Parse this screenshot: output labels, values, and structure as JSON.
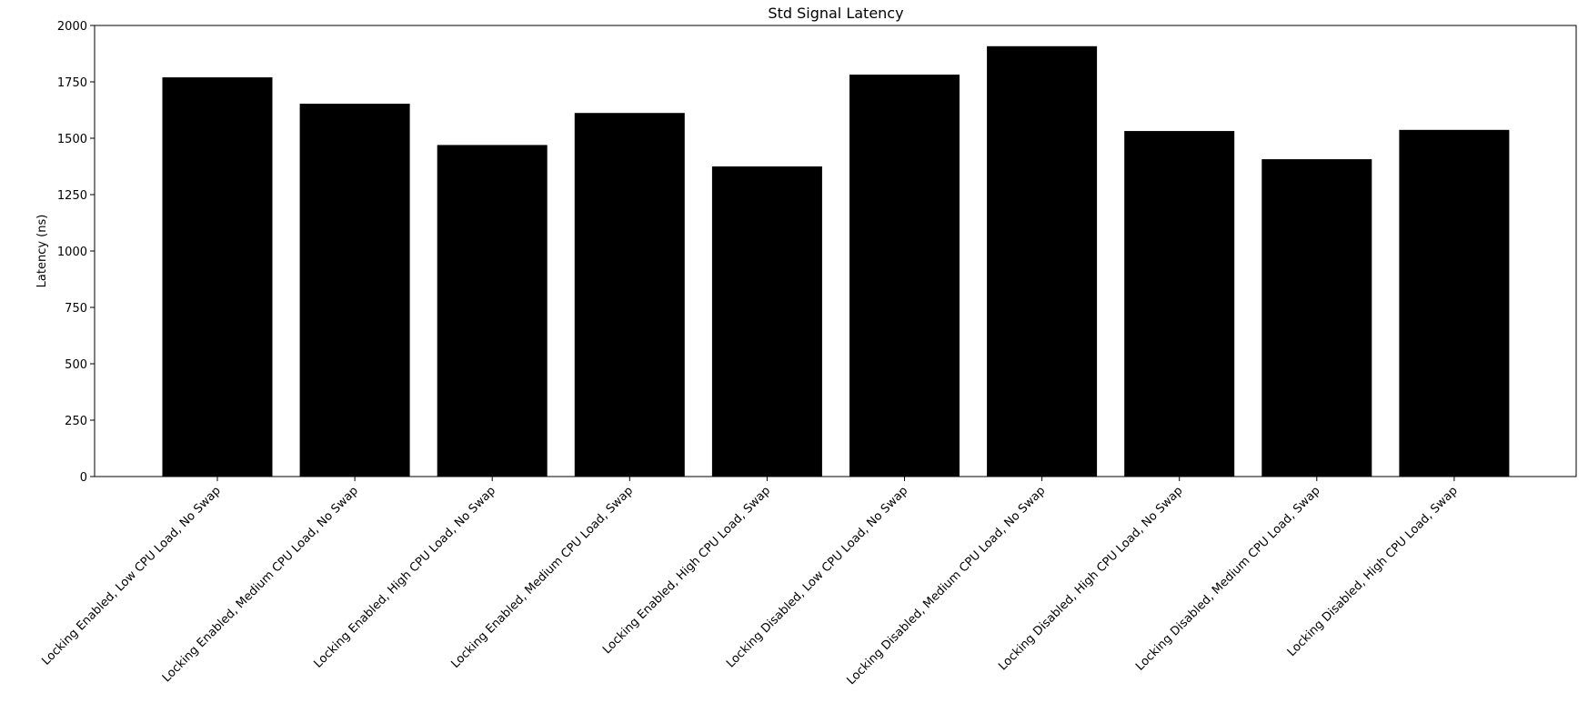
{
  "chart_data": {
    "type": "bar",
    "title": "Std Signal Latency",
    "xlabel": "",
    "ylabel": "Latency (ns)",
    "ylim": [
      0,
      2000
    ],
    "yticks": [
      0,
      250,
      500,
      750,
      1000,
      1250,
      1500,
      1750,
      2000
    ],
    "grid": false,
    "bar_color": "#000000",
    "categories": [
      "Locking Enabled, Low CPU Load, No Swap",
      "Locking Enabled, Medium CPU Load, No Swap",
      "Locking Enabled, High CPU Load, No Swap",
      "Locking Enabled, Medium CPU Load, Swap",
      "Locking Enabled, High CPU Load, Swap",
      "Locking Disabled, Low CPU Load, No Swap",
      "Locking Disabled, Medium CPU Load, No Swap",
      "Locking Disabled, High CPU Load, No Swap",
      "Locking Disabled, Medium CPU Load, Swap",
      "Locking Disabled, High CPU Load, Swap"
    ],
    "values": [
      1770,
      1653,
      1470,
      1612,
      1375,
      1782,
      1908,
      1532,
      1407,
      1537
    ]
  }
}
